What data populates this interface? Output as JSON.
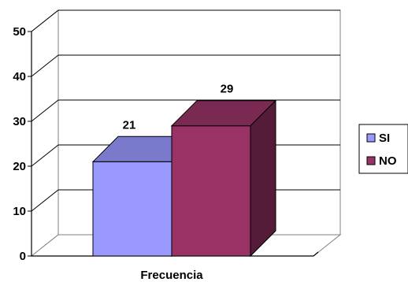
{
  "chart_data": {
    "type": "bar",
    "categories": [
      "Frecuencia"
    ],
    "series": [
      {
        "name": "SI",
        "values": [
          21
        ],
        "color": "#9999ff",
        "data_label": "21"
      },
      {
        "name": "NO",
        "values": [
          29
        ],
        "color": "#993366",
        "data_label": "29"
      }
    ],
    "xlabel": "",
    "ylabel": "",
    "title": "",
    "ylim": [
      0,
      50
    ],
    "yticks": [
      0,
      10,
      20,
      30,
      40,
      50
    ],
    "ytick_labels": [
      "0",
      "10",
      "20",
      "30",
      "40",
      "50"
    ],
    "grid": true,
    "three_d": true,
    "legend": "right"
  }
}
